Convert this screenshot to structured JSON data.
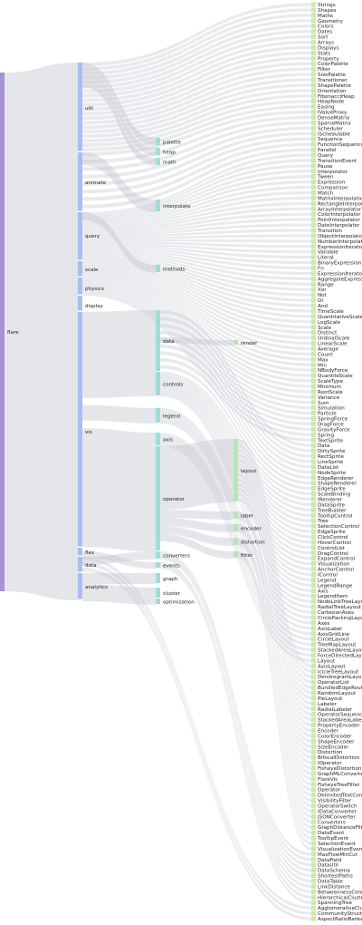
{
  "colors": {
    "root": "#a892d6",
    "level1": "#a9bdf0",
    "level2": "#9fddd8",
    "level3": "#b6e6b3",
    "leaf": "#c9eda6",
    "link": "#c4c8d0"
  },
  "root": {
    "label": "flare"
  },
  "level1": [
    "util",
    "animate",
    "query",
    "scale",
    "physics",
    "display",
    "vis",
    "flex",
    "data",
    "analytics"
  ],
  "level2": [
    "palette",
    "heap",
    "math",
    "interpolate",
    "methods",
    "data",
    "controls",
    "legend",
    "axis",
    "operator",
    "converters",
    "events",
    "graph",
    "cluster",
    "optimization"
  ],
  "level3": [
    "render",
    "layout",
    "label",
    "encoder",
    "distortion",
    "filter"
  ],
  "leaves": [
    "Strings",
    "Shapes",
    "Maths",
    "Geometry",
    "Colors",
    "Dates",
    "Sort",
    "Arrays",
    "Displays",
    "Stats",
    "Property",
    "ColorPalette",
    "Filter",
    "SizePalette",
    "Transitioner",
    "ShapePalette",
    "Orientation",
    "FibonacciHeap",
    "HeapNode",
    "Easing",
    "IValueProxy",
    "DenseMatrix",
    "SparseMatrix",
    "Scheduler",
    "ISchedulable",
    "Sequence",
    "FunctionSequence",
    "Parallel",
    "Query",
    "TransitionEvent",
    "Pause",
    "Interpolator",
    "Tween",
    "Expression",
    "Comparison",
    "Match",
    "MatrixInterpolator",
    "RectangleInterpolator",
    "ArrayInterpolator",
    "ColorInterpolator",
    "PointInterpolator",
    "DateInterpolator",
    "Transition",
    "ObjectInterpolator",
    "NumberInterpolator",
    "ExpressionIterator",
    "Variable",
    "Literal",
    "BinaryExpression",
    "Fn",
    "ExpressionIterator",
    "AggregateExpression",
    "Range",
    "Xor",
    "Not",
    "Or",
    "And",
    "TimeScale",
    "QuantitativeScale",
    "LogScale",
    "Scale",
    "Distinct",
    "OrdinalScale",
    "LinearScale",
    "Average",
    "Count",
    "Max",
    "Min",
    "NBodyForce",
    "QuantileScale",
    "ScaleType",
    "Minimum",
    "RootScale",
    "Variance",
    "Sum",
    "Simulation",
    "Particle",
    "SpringForce",
    "DragForce",
    "GravityForce",
    "Spring",
    "TextSprite",
    "Data",
    "DirtySprite",
    "RectSprite",
    "LineSprite",
    "DataList",
    "NodeSprite",
    "EdgeRenderer",
    "ShapeRenderer",
    "EdgeSprite",
    "ScaleBinding",
    "IRenderer",
    "DataSprite",
    "TreeBuilder",
    "TooltipControl",
    "Tree",
    "SelectionControl",
    "EdgeSprite",
    "ClickControl",
    "HoverControl",
    "ControlList",
    "DragControl",
    "ExpandControl",
    "Visualization",
    "AnchorControl",
    "IControl",
    "Legend",
    "LegendRange",
    "Axis",
    "LegendItem",
    "NodeLinkTreeLayout",
    "RadialTreeLayout",
    "CartesianAxes",
    "CirclePackingLayout",
    "Axes",
    "AxisLabel",
    "AxisGridLine",
    "CircleLayout",
    "TreeMapLayout",
    "StackedAreaLayout",
    "ForceDirectedLayout",
    "Layout",
    "AxisLayout",
    "IcicleTreeLayout",
    "DendrogramLayout",
    "OperatorList",
    "BundledEdgeRouter",
    "RandomLayout",
    "PieLayout",
    "Labeler",
    "RadialLabeler",
    "OperatorSequence",
    "StackedAreaLabeler",
    "PropertyEncoder",
    "Encoder",
    "ColorEncoder",
    "ShapeEncoder",
    "SizeEncoder",
    "Distortion",
    "BifocalDistortion",
    "IOperator",
    "FisheyeDistortion",
    "GraphMLConverter",
    "FlareVis",
    "FisheyeTreeFilter",
    "Operator",
    "DelimitedTextConverter",
    "VisibilityFilter",
    "OperatorSwitch",
    "IDataConverter",
    "JSONConverter",
    "Converters",
    "GraphDistanceFilter",
    "DataEvent",
    "TooltipEvent",
    "SelectionEvent",
    "VisualizationEvent",
    "MaxFlowMinCut",
    "DataField",
    "DataUtil",
    "DataSchema",
    "ShortestPaths",
    "DataTable",
    "LinkDistance",
    "BetweennessCentrality",
    "HierarchicalCluster",
    "SpanningTree",
    "AgglomerativeCluster",
    "CommunityStructure",
    "AspectRatioBanker"
  ]
}
